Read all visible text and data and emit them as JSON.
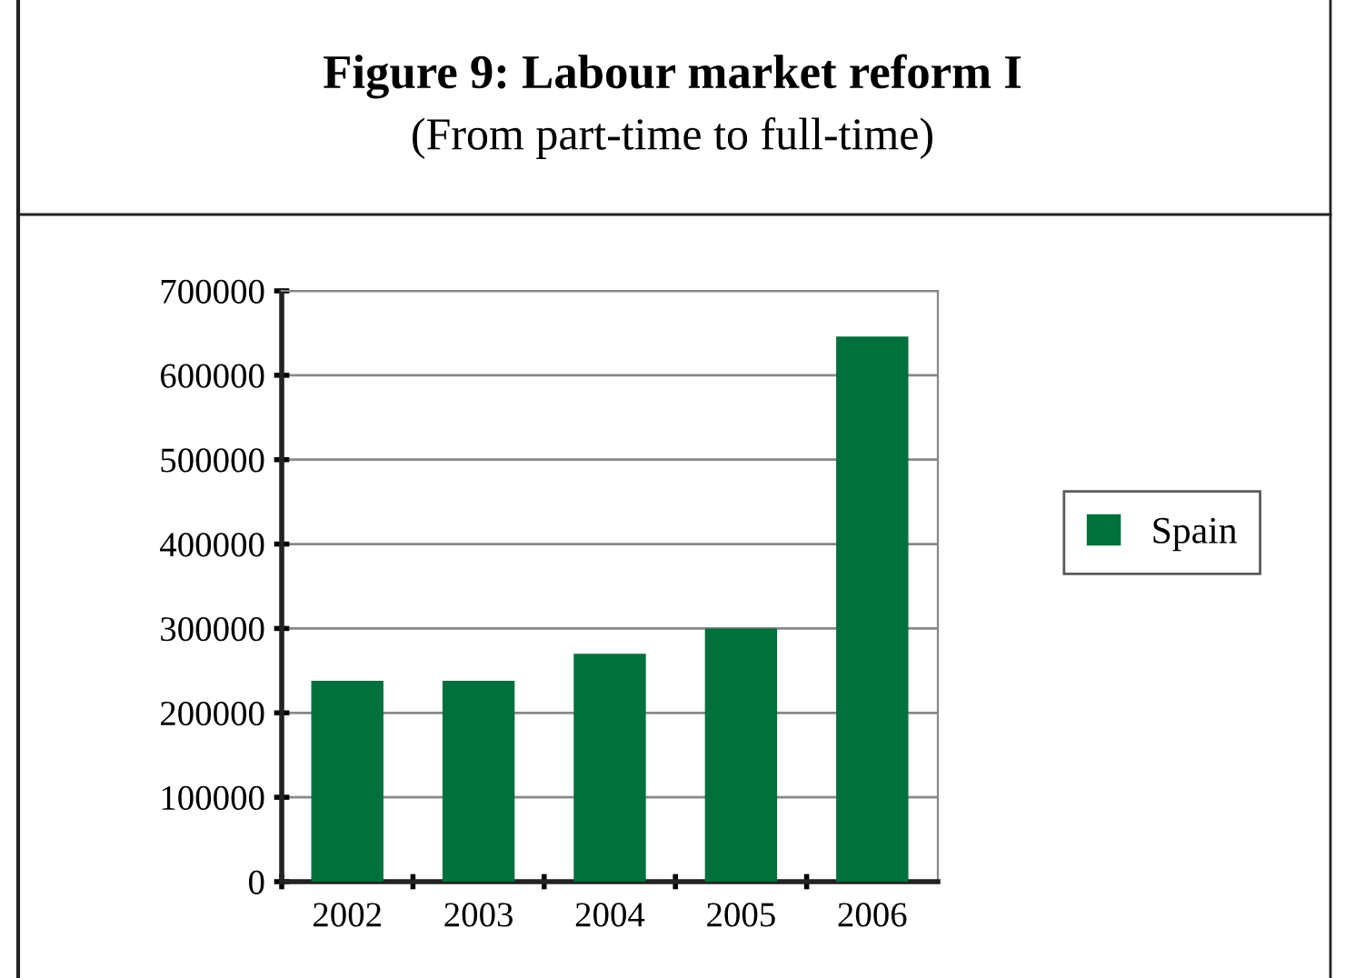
{
  "chart_data": {
    "type": "bar",
    "title": "Figure 9: Labour market reform I",
    "subtitle": "(From part-time to full-time)",
    "categories": [
      "2002",
      "2003",
      "2004",
      "2005",
      "2006"
    ],
    "series": [
      {
        "name": "Spain",
        "color": "#00703c",
        "values": [
          238000,
          238000,
          270000,
          300000,
          646000
        ]
      }
    ],
    "ylim": [
      0,
      700000
    ],
    "yticks": [
      0,
      100000,
      200000,
      300000,
      400000,
      500000,
      600000,
      700000
    ],
    "grid": "y",
    "legend": "right"
  }
}
